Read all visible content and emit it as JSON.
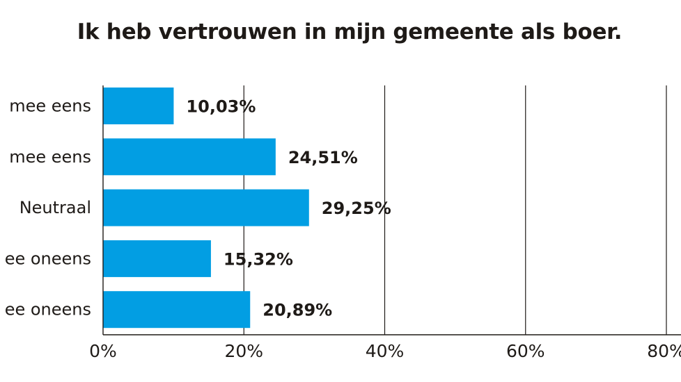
{
  "chart_data": {
    "type": "bar",
    "orientation": "horizontal",
    "title": "Ik heb vertrouwen in mijn gemeente als boer.",
    "categories": [
      "mee eens",
      "mee eens",
      "Neutraal",
      "ee oneens",
      "ee oneens"
    ],
    "values": [
      10.03,
      24.51,
      29.25,
      15.32,
      20.89
    ],
    "value_labels": [
      "10,03%",
      "24,51%",
      "29,25%",
      "15,32%",
      "20,89%"
    ],
    "xlim": [
      0,
      80
    ],
    "xticks": [
      0,
      20,
      40,
      60,
      80
    ],
    "xtick_labels": [
      "0%",
      "20%",
      "40%",
      "60%",
      "80%"
    ],
    "grid": "vertical",
    "bar_color": "#029ee3",
    "text_color": "#1e1a17"
  }
}
